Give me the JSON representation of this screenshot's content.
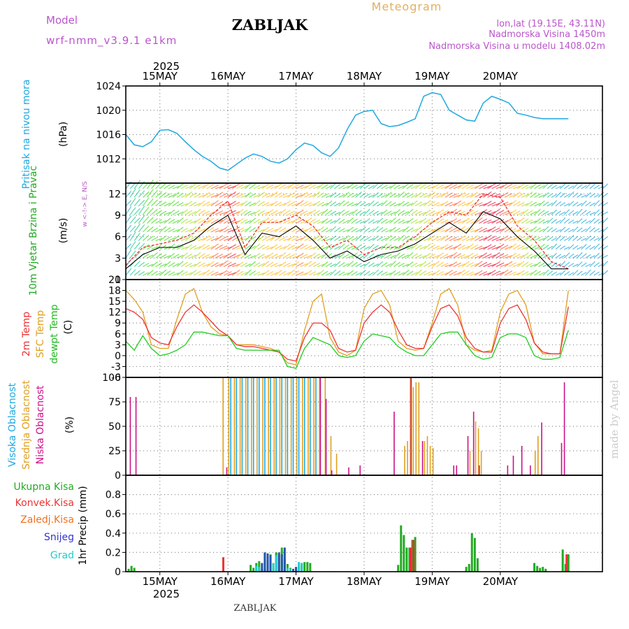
{
  "header": {
    "model_label": "Model",
    "model_name": "wrf-nmm_v3.9.1 e1km",
    "title": "ZABLJAK",
    "product": "Meteogram",
    "coords": "lon,lat (19.15E, 43.11N)",
    "elevation": "Nadmorska Visina 1450m",
    "model_elevation": "Nadmorska Visina u modelu 1408.02m",
    "footer_station": "ZABLJAK",
    "credit": "made by Angel",
    "year_top": "2025",
    "year_bottom": "2025"
  },
  "colors": {
    "pressure": "#1fa8e0",
    "temp2m": "#ee3333",
    "sfc": "#e0a020",
    "dewpt": "#22cc22",
    "high_cloud": "#1fa8e0",
    "mid_cloud": "#e0a020",
    "low_cloud": "#cc1188",
    "total_precip": "#22aa22",
    "conv_precip": "#ee3333",
    "frozen_precip": "#f07020",
    "snow": "#3333cc",
    "hail": "#22cccc",
    "label_purple": "#bb55cc"
  },
  "chart_data": [
    {
      "type": "line",
      "name": "pressure",
      "ylabel": "Pritisak na nivou mora",
      "unit": "(hPa)",
      "ylim": [
        1008,
        1024
      ],
      "yticks": [
        1012,
        1016,
        1020,
        1024
      ],
      "x_days": [
        "15MAY",
        "16MAY",
        "17MAY",
        "18MAY",
        "19MAY",
        "20MAY"
      ],
      "x": [
        0,
        3,
        6,
        9,
        12,
        15,
        18,
        21,
        24,
        27,
        30,
        33,
        36,
        39,
        42,
        45,
        48,
        51,
        54,
        57,
        60,
        63,
        66,
        69,
        72,
        75,
        78,
        81,
        84,
        87,
        90,
        93,
        96,
        99,
        102,
        105,
        108,
        111,
        114,
        117,
        120,
        123,
        126,
        129,
        132,
        135,
        138,
        141,
        144
      ],
      "x_unit": "hours from 15MAY 00UTC, axis starts -12",
      "series": [
        {
          "name": "",
          "values": [
            1016.7,
            1016.8,
            1016.2,
            1014.8,
            1013.5,
            1012.4,
            1011.6,
            1010.5,
            1010.1,
            1011.1,
            1012.1,
            1012.8,
            1012.4,
            1011.6,
            1011.3,
            1012.0,
            1013.5,
            1014.6,
            1014.2,
            1013.0,
            1012.4,
            1013.8,
            1016.8,
            1019.2,
            1019.8,
            1020.0,
            1017.8,
            1017.3,
            1017.5,
            1018.0,
            1018.6,
            1022.3,
            1022.9,
            1022.6,
            1020.0,
            1019.2,
            1018.4,
            1018.2,
            1021.2,
            1022.3,
            1021.8,
            1021.2,
            1019.5,
            1019.2,
            1018.8,
            1018.6,
            1018.6,
            1018.6,
            1018.6
          ]
        }
      ],
      "lead_in": {
        "x": [
          -12,
          -9,
          -6,
          -3
        ],
        "values": [
          1016.0,
          1014.3,
          1014.0,
          1014.8
        ]
      }
    },
    {
      "type": "line",
      "name": "wind",
      "ylabel": "10m Vjetar Brzina i Pravac",
      "unit": "(m/s)",
      "compass": "w <-!-> E, N/S",
      "ylim": [
        0,
        13.5
      ],
      "yticks": [
        0,
        3,
        6,
        9,
        12
      ],
      "x": [
        -12,
        -6,
        0,
        6,
        12,
        18,
        24,
        30,
        36,
        42,
        48,
        54,
        60,
        66,
        72,
        78,
        84,
        90,
        96,
        102,
        108,
        114,
        120,
        126,
        132,
        138,
        144
      ],
      "series": [
        {
          "name": "mean",
          "values": [
            1.5,
            3.5,
            4.5,
            4.5,
            5.5,
            7.5,
            9.0,
            3.5,
            6.5,
            6.0,
            7.5,
            5.5,
            3.0,
            4.0,
            2.5,
            3.5,
            4.0,
            5.0,
            6.5,
            8.0,
            6.5,
            9.5,
            8.5,
            6.0,
            4.0,
            1.5,
            1.5
          ]
        },
        {
          "name": "gust",
          "values": [
            2.0,
            4.5,
            5.0,
            5.5,
            6.5,
            9.0,
            11.0,
            4.5,
            8.0,
            8.0,
            9.0,
            7.5,
            4.5,
            5.5,
            3.5,
            4.5,
            4.5,
            6.0,
            8.0,
            9.5,
            9.0,
            12.0,
            11.5,
            7.5,
            5.5,
            2.5,
            1.5
          ]
        }
      ]
    },
    {
      "type": "line",
      "name": "temperature",
      "ylabel_lines": [
        "2m Temp",
        "SFC Temp",
        "dewpt Temp"
      ],
      "unit": "(C)",
      "ylim": [
        -6,
        21
      ],
      "yticks": [
        -6,
        -3,
        0,
        3,
        6,
        9,
        12,
        15,
        18,
        21
      ],
      "x": [
        -12,
        -9,
        -6,
        -3,
        0,
        3,
        6,
        9,
        12,
        15,
        18,
        21,
        24,
        27,
        30,
        33,
        36,
        39,
        42,
        45,
        48,
        51,
        54,
        57,
        60,
        63,
        66,
        69,
        72,
        75,
        78,
        81,
        84,
        87,
        90,
        93,
        96,
        99,
        102,
        105,
        108,
        111,
        114,
        117,
        120,
        123,
        126,
        129,
        132,
        135,
        138,
        141,
        144
      ],
      "series": [
        {
          "name": "2m Temp",
          "values": [
            13,
            12,
            10,
            5,
            3.5,
            3,
            8,
            12,
            14,
            12,
            9.5,
            7,
            5.5,
            3,
            2.5,
            2.5,
            2,
            1.5,
            1,
            -1,
            -1.5,
            5,
            9,
            9,
            7,
            2,
            1,
            1.5,
            9,
            12,
            14,
            12,
            7,
            3,
            2,
            2,
            8,
            13,
            14,
            11,
            5,
            2,
            1,
            1,
            9,
            13,
            14,
            10,
            3.5,
            1,
            0.5,
            0.5,
            13.5
          ]
        },
        {
          "name": "SFC Temp",
          "values": [
            18,
            15.5,
            12,
            3,
            2,
            2,
            10,
            17,
            18.5,
            12,
            8,
            6,
            5.5,
            3,
            3,
            3,
            2.5,
            2,
            1,
            -2,
            -2.5,
            7,
            15,
            17,
            5,
            1,
            0,
            1.5,
            13,
            17,
            18,
            14,
            4,
            2,
            1.5,
            2,
            9,
            17,
            18.5,
            14,
            3,
            1.5,
            1,
            1.5,
            12,
            17,
            18,
            14,
            3.5,
            0.5,
            0.5,
            0.5,
            18
          ]
        },
        {
          "name": "dewpt Temp",
          "values": [
            4,
            1.5,
            5.5,
            2,
            0,
            0.5,
            1.5,
            3,
            6.5,
            6.5,
            6,
            5.5,
            5.5,
            2,
            1.5,
            1.5,
            1.5,
            1.5,
            1.5,
            -3,
            -3.5,
            2,
            5,
            4,
            3,
            0,
            -0.5,
            0,
            4,
            6,
            5.5,
            5,
            2.5,
            1,
            0,
            0,
            3,
            6,
            6.5,
            6.5,
            3,
            0,
            -1,
            -0.5,
            5,
            6,
            6,
            5,
            0,
            -1,
            -1,
            -0.5,
            7
          ]
        }
      ]
    },
    {
      "type": "bar",
      "name": "cloud",
      "ylabel_lines": [
        "Visoka Oblacnost",
        "Srednja Oblacnost",
        "Niska Oblacnost"
      ],
      "unit": "(%)",
      "ylim": [
        0,
        100
      ],
      "yticks": [
        0,
        25,
        50,
        75,
        100
      ],
      "series": [
        {
          "name": "Visoka Oblacnost",
          "x": [
            25,
            27,
            29,
            31,
            33,
            35,
            37,
            39,
            41,
            43,
            45,
            47,
            49,
            51,
            53,
            55
          ],
          "values": [
            100,
            100,
            100,
            100,
            100,
            100,
            100,
            100,
            100,
            100,
            100,
            100,
            100,
            100,
            100,
            100
          ]
        },
        {
          "name": "Srednja Oblacnost",
          "x": [
            22,
            24,
            26,
            28,
            30,
            32,
            34,
            36,
            38,
            40,
            42,
            44,
            46,
            48,
            50,
            52,
            54,
            56,
            58,
            60,
            62,
            86,
            87,
            88,
            89,
            90,
            91,
            93,
            94,
            95,
            96,
            109,
            111,
            112,
            113,
            132,
            133
          ],
          "values": [
            100,
            100,
            100,
            100,
            100,
            100,
            100,
            100,
            100,
            100,
            100,
            100,
            100,
            100,
            100,
            100,
            100,
            100,
            100,
            40,
            22,
            30,
            35,
            100,
            90,
            95,
            95,
            35,
            40,
            30,
            28,
            25,
            55,
            48,
            25,
            25,
            40
          ]
        },
        {
          "name": "Niska Oblacnost",
          "x": [
            -11,
            -9,
            23,
            56,
            58,
            60,
            66,
            70,
            82,
            88,
            92,
            103,
            104,
            108,
            110,
            112,
            122,
            124,
            127,
            130,
            134,
            141,
            142
          ],
          "values": [
            80,
            80,
            8,
            100,
            78,
            5,
            8,
            10,
            65,
            100,
            35,
            10,
            10,
            40,
            65,
            10,
            10,
            20,
            30,
            10,
            54,
            33,
            95
          ]
        }
      ]
    },
    {
      "type": "bar",
      "name": "precip",
      "ylabel": "1hr Precip (mm)",
      "ylim": [
        0,
        1.0
      ],
      "yticks": [
        0,
        0.2,
        0.4,
        0.6,
        0.8
      ],
      "legend": [
        "Ukupna Kisa",
        "Konvek.Kisa",
        "Zaledj.Kisa",
        "Snijeg",
        "Grad"
      ],
      "series": [
        {
          "name": "Ukupna Kisa",
          "x": [
            -11,
            -10,
            -9,
            32,
            33,
            34,
            35,
            36,
            37,
            38,
            39,
            40,
            41,
            42,
            43,
            44,
            45,
            46,
            47,
            48,
            49,
            50,
            51,
            52,
            53,
            84,
            85,
            86,
            87,
            88,
            89,
            90,
            108,
            109,
            110,
            111,
            112,
            132,
            133,
            134,
            135,
            136,
            142,
            143,
            144
          ],
          "values": [
            0.03,
            0.06,
            0.04,
            0.07,
            0.04,
            0.09,
            0.11,
            0.03,
            0.03,
            0.12,
            0.18,
            0.04,
            0.2,
            0.18,
            0.25,
            0.13,
            0.08,
            0.04,
            0.02,
            0.04,
            0.06,
            0.09,
            0.1,
            0.1,
            0.09,
            0.07,
            0.48,
            0.38,
            0.25,
            0.25,
            0.33,
            0.36,
            0.05,
            0.08,
            0.4,
            0.35,
            0.14,
            0.09,
            0.06,
            0.04,
            0.05,
            0.03,
            0.23,
            0.08,
            0.18
          ]
        },
        {
          "name": "Konvek.Kisa",
          "x": [
            22,
            88,
            89,
            143
          ],
          "values": [
            0.15,
            0.25,
            0.33,
            0.18
          ]
        },
        {
          "name": "Snijeg",
          "x": [
            36,
            37,
            38,
            39,
            42,
            43,
            44,
            47,
            48
          ],
          "values": [
            0.09,
            0.2,
            0.19,
            0.17,
            0.2,
            0.18,
            0.25,
            0.03,
            0.05
          ]
        },
        {
          "name": "Grad",
          "x": [
            34,
            35,
            40,
            41,
            45,
            46,
            49,
            50
          ],
          "values": [
            0.06,
            0.05,
            0.09,
            0.17,
            0.04,
            0.03,
            0.1,
            0.09
          ]
        }
      ]
    }
  ]
}
